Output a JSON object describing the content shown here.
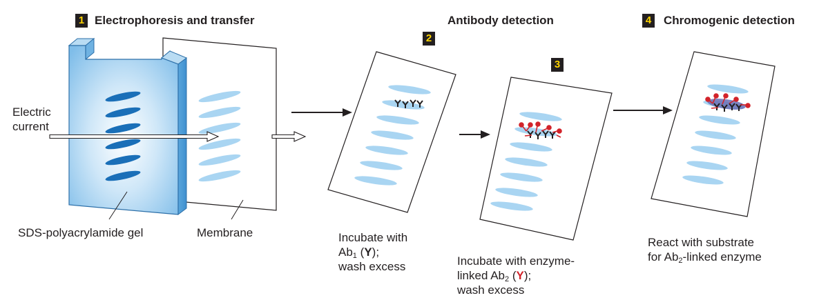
{
  "steps": {
    "s1": {
      "number": "1",
      "title": "Electrophoresis and transfer"
    },
    "s2": {
      "number": "2",
      "title": "Antibody detection"
    },
    "s3": {
      "number": "3"
    },
    "s4": {
      "number": "4",
      "title": "Chromogenic detection"
    }
  },
  "labels": {
    "electric_line1": "Electric",
    "electric_line2": "current",
    "gel": "SDS-polyacrylamide gel",
    "membrane": "Membrane",
    "incubate1": {
      "line1": "Incubate with",
      "line2_pre": "Ab",
      "line2_sub": "1",
      "line2_open": " (",
      "line2_symbol": "Y",
      "line2_close": ");",
      "line3": "wash excess"
    },
    "incubate2": {
      "line1": "Incubate with enzyme-",
      "line2_pre": "linked Ab",
      "line2_sub": "2",
      "line2_open": " (",
      "line2_symbol": "Y",
      "line2_close": ");",
      "line3": "wash excess"
    },
    "react": {
      "line1": "React with substrate",
      "line2_pre": "for Ab",
      "line2_sub": "2",
      "line2_post": "-linked enzyme"
    }
  },
  "colors": {
    "gel_band": "#1a6fb8",
    "membrane_band": "#a9d5f2",
    "gel_fill": "#8fc5ec",
    "ab1": "#231f20",
    "ab2_enzyme": "#d2232a",
    "product": "#6a6fb5",
    "badge_bg": "#231f20",
    "badge_text": "#ffd400"
  }
}
